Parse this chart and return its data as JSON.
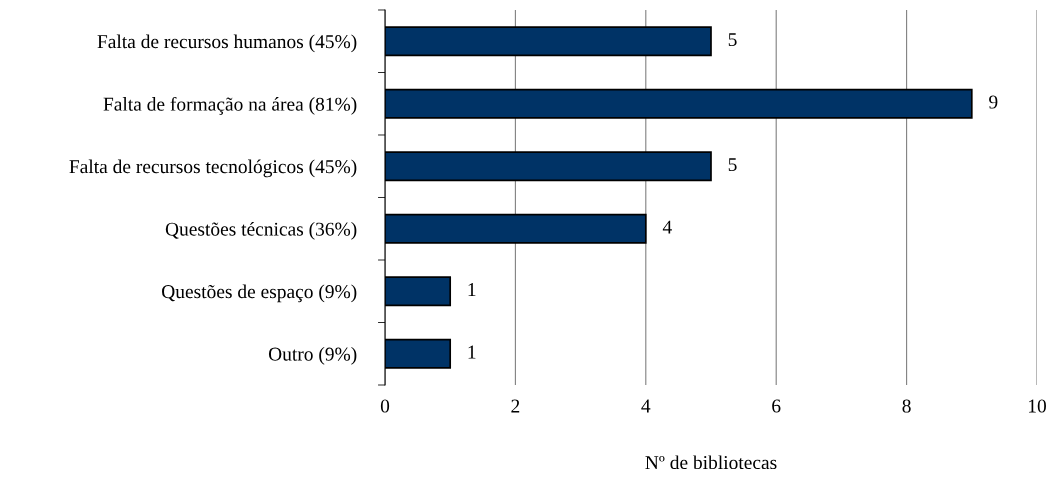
{
  "chart_data": {
    "type": "bar",
    "orientation": "horizontal",
    "categories": [
      "Falta de recursos humanos (45%)",
      "Falta de formação na área (81%)",
      "Falta de recursos tecnológicos (45%)",
      "Questões técnicas (36%)",
      "Questões de espaço (9%)",
      "Outro (9%)"
    ],
    "values": [
      5,
      9,
      5,
      4,
      1,
      1
    ],
    "color": "#003366",
    "xlabel": "Nº de bibliotecas",
    "xlim": [
      0,
      10
    ],
    "xticks": [
      0,
      2,
      4,
      6,
      8,
      10
    ],
    "grid": "x",
    "data_labels": true
  }
}
